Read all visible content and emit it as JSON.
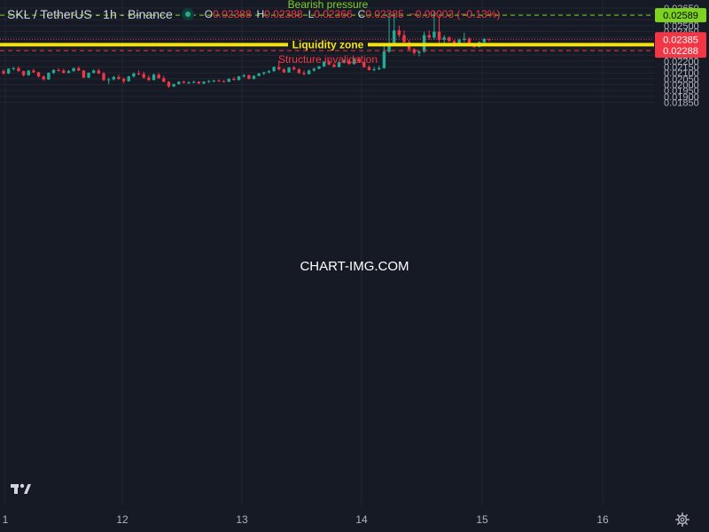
{
  "header": {
    "symbol": "SKL / TetherUS · 1h · Binance",
    "open_label": "O",
    "open": "0.02388",
    "high_label": "H",
    "high": "0.02388",
    "low_label": "L",
    "low": "0.02366",
    "close_label": "C",
    "close": "0.02385",
    "change": "−0.00003 (−0.13%)"
  },
  "watermark": "CHART-IMG.COM",
  "colors": {
    "background": "#161a25",
    "grid": "#232632",
    "up": "#22ab94",
    "down": "#f23645",
    "axis_text": "#b2b5be",
    "bearish_line": "#7ed321",
    "liquidity_line": "#f5e20f",
    "invalidation_line": "#f23645"
  },
  "chart_data": {
    "type": "candlestick",
    "symbol": "SKL / TetherUS",
    "interval": "1h",
    "exchange": "Binance",
    "x_ticks": [
      "1",
      "12",
      "13",
      "14",
      "15",
      "16"
    ],
    "y_ticks": [
      "0.02650",
      "0.02600",
      "0.02550",
      "0.02500",
      "0.02450",
      "0.02400",
      "0.02350",
      "0.02300",
      "0.02250",
      "0.02200",
      "0.02150",
      "0.02100",
      "0.02050",
      "0.02000",
      "0.01950",
      "0.01900",
      "0.01850"
    ],
    "ylim": [
      0.0182,
      0.0266
    ],
    "grid": true,
    "candles": [
      [
        0.02115,
        0.0213,
        0.02085,
        0.02095
      ],
      [
        0.02095,
        0.0214,
        0.0209,
        0.02135
      ],
      [
        0.02135,
        0.0215,
        0.0212,
        0.0214
      ],
      [
        0.0214,
        0.02155,
        0.0211,
        0.02115
      ],
      [
        0.02115,
        0.0212,
        0.0207,
        0.0208
      ],
      [
        0.0208,
        0.02125,
        0.02075,
        0.0212
      ],
      [
        0.0212,
        0.02135,
        0.021,
        0.02105
      ],
      [
        0.02105,
        0.0211,
        0.0206,
        0.0207
      ],
      [
        0.0207,
        0.0208,
        0.02035,
        0.02045
      ],
      [
        0.02045,
        0.02105,
        0.0204,
        0.021
      ],
      [
        0.021,
        0.0213,
        0.0209,
        0.02125
      ],
      [
        0.02125,
        0.0214,
        0.0211,
        0.0212
      ],
      [
        0.0212,
        0.02135,
        0.02095,
        0.021
      ],
      [
        0.021,
        0.02125,
        0.02095,
        0.02115
      ],
      [
        0.02115,
        0.02145,
        0.0211,
        0.0214
      ],
      [
        0.0214,
        0.02155,
        0.02115,
        0.0212
      ],
      [
        0.0212,
        0.02125,
        0.02055,
        0.0206
      ],
      [
        0.0206,
        0.02105,
        0.02055,
        0.021
      ],
      [
        0.021,
        0.0213,
        0.02095,
        0.0212
      ],
      [
        0.0212,
        0.02135,
        0.0209,
        0.02095
      ],
      [
        0.02095,
        0.0211,
        0.0203,
        0.0204
      ],
      [
        0.0204,
        0.0206,
        0.02005,
        0.02045
      ],
      [
        0.02045,
        0.02075,
        0.02035,
        0.02065
      ],
      [
        0.02065,
        0.02085,
        0.0204,
        0.0205
      ],
      [
        0.0205,
        0.0206,
        0.0201,
        0.0203
      ],
      [
        0.0203,
        0.02075,
        0.02025,
        0.0207
      ],
      [
        0.0207,
        0.02105,
        0.0206,
        0.02095
      ],
      [
        0.02095,
        0.0212,
        0.0208,
        0.0209
      ],
      [
        0.0209,
        0.0211,
        0.0205,
        0.0206
      ],
      [
        0.0206,
        0.0208,
        0.0203,
        0.0204
      ],
      [
        0.0204,
        0.02095,
        0.02035,
        0.02085
      ],
      [
        0.02085,
        0.021,
        0.0205,
        0.02055
      ],
      [
        0.02055,
        0.02075,
        0.0202,
        0.02025
      ],
      [
        0.02025,
        0.0203,
        0.01975,
        0.01985
      ],
      [
        0.01985,
        0.0201,
        0.0198,
        0.02005
      ],
      [
        0.02005,
        0.0203,
        0.02,
        0.02025
      ],
      [
        0.02025,
        0.02035,
        0.0201,
        0.02015
      ],
      [
        0.02015,
        0.0203,
        0.02005,
        0.0202
      ],
      [
        0.0202,
        0.02035,
        0.0201,
        0.02025
      ],
      [
        0.02025,
        0.0203,
        0.02005,
        0.0201
      ],
      [
        0.0201,
        0.0203,
        0.02005,
        0.02025
      ],
      [
        0.02025,
        0.0204,
        0.02015,
        0.0203
      ],
      [
        0.0203,
        0.0204,
        0.0202,
        0.02035
      ],
      [
        0.02035,
        0.02045,
        0.02025,
        0.0203
      ],
      [
        0.0203,
        0.0204,
        0.0202,
        0.02025
      ],
      [
        0.02025,
        0.02055,
        0.0202,
        0.0205
      ],
      [
        0.0205,
        0.02065,
        0.02035,
        0.0204
      ],
      [
        0.0204,
        0.02075,
        0.02035,
        0.0207
      ],
      [
        0.0207,
        0.0209,
        0.0206,
        0.0208
      ],
      [
        0.0208,
        0.02085,
        0.02045,
        0.0205
      ],
      [
        0.0205,
        0.0208,
        0.02045,
        0.02075
      ],
      [
        0.02075,
        0.021,
        0.0207,
        0.02095
      ],
      [
        0.02095,
        0.0211,
        0.0208,
        0.02105
      ],
      [
        0.02105,
        0.02125,
        0.02095,
        0.02115
      ],
      [
        0.02115,
        0.02155,
        0.0211,
        0.0215
      ],
      [
        0.0215,
        0.02205,
        0.0212,
        0.0213
      ],
      [
        0.0213,
        0.0214,
        0.021,
        0.02105
      ],
      [
        0.02105,
        0.0215,
        0.021,
        0.02145
      ],
      [
        0.02145,
        0.0216,
        0.0212,
        0.0213
      ],
      [
        0.0213,
        0.0214,
        0.0209,
        0.021
      ],
      [
        0.021,
        0.0212,
        0.0208,
        0.0209
      ],
      [
        0.0209,
        0.0213,
        0.02085,
        0.0212
      ],
      [
        0.0212,
        0.02145,
        0.0211,
        0.02135
      ],
      [
        0.02135,
        0.0216,
        0.0213,
        0.02155
      ],
      [
        0.02155,
        0.022,
        0.0215,
        0.02195
      ],
      [
        0.02195,
        0.0221,
        0.02165,
        0.0217
      ],
      [
        0.0217,
        0.02185,
        0.02145,
        0.0215
      ],
      [
        0.0215,
        0.02195,
        0.02145,
        0.0219
      ],
      [
        0.0219,
        0.02215,
        0.0218,
        0.02205
      ],
      [
        0.02205,
        0.0221,
        0.0217,
        0.02175
      ],
      [
        0.02175,
        0.0223,
        0.0217,
        0.0222
      ],
      [
        0.0222,
        0.02235,
        0.02185,
        0.0219
      ],
      [
        0.0219,
        0.02195,
        0.0214,
        0.0215
      ],
      [
        0.0215,
        0.02165,
        0.0212,
        0.02125
      ],
      [
        0.02125,
        0.0215,
        0.02115,
        0.0213
      ],
      [
        0.0213,
        0.0216,
        0.02125,
        0.0214
      ],
      [
        0.0214,
        0.0235,
        0.02135,
        0.0228
      ],
      [
        0.0228,
        0.0261,
        0.0227,
        0.0235
      ],
      [
        0.0235,
        0.0259,
        0.0234,
        0.0246
      ],
      [
        0.0246,
        0.025,
        0.024,
        0.0242
      ],
      [
        0.0242,
        0.0246,
        0.0234,
        0.0236
      ],
      [
        0.0236,
        0.0238,
        0.0229,
        0.023
      ],
      [
        0.023,
        0.0231,
        0.0225,
        0.0227
      ],
      [
        0.0227,
        0.0229,
        0.0224,
        0.0228
      ],
      [
        0.0228,
        0.0245,
        0.0227,
        0.0242
      ],
      [
        0.0242,
        0.0246,
        0.0238,
        0.024
      ],
      [
        0.024,
        0.0262,
        0.0238,
        0.0245
      ],
      [
        0.0245,
        0.0258,
        0.0235,
        0.0238
      ],
      [
        0.0238,
        0.0242,
        0.0235,
        0.024
      ],
      [
        0.024,
        0.0241,
        0.0236,
        0.0237
      ],
      [
        0.0237,
        0.0238,
        0.0232,
        0.0234
      ],
      [
        0.0234,
        0.0239,
        0.0233,
        0.0238
      ],
      [
        0.0238,
        0.0244,
        0.0236,
        0.0239
      ],
      [
        0.0239,
        0.024,
        0.0233,
        0.0234
      ],
      [
        0.0234,
        0.0235,
        0.0231,
        0.0232
      ],
      [
        0.0232,
        0.0237,
        0.02315,
        0.0236
      ],
      [
        0.0236,
        0.02395,
        0.0235,
        0.02388
      ],
      [
        0.02388,
        0.02388,
        0.02366,
        0.02385
      ]
    ],
    "annotations": [
      {
        "label": "Bearish pressure",
        "price": 0.02589,
        "price_label": "0.02589",
        "style": "dashed",
        "color": "#7ed321"
      },
      {
        "label": "Liquidity zone",
        "price": 0.02339,
        "price_label": "0.02339",
        "style": "solid",
        "color": "#f5e20f"
      },
      {
        "label": "Structure invalidation",
        "price": 0.02288,
        "price_label": "0.02288",
        "style": "dashed",
        "color": "#f23645"
      }
    ],
    "last_price": 0.02385,
    "last_price_label": "0.02385"
  }
}
